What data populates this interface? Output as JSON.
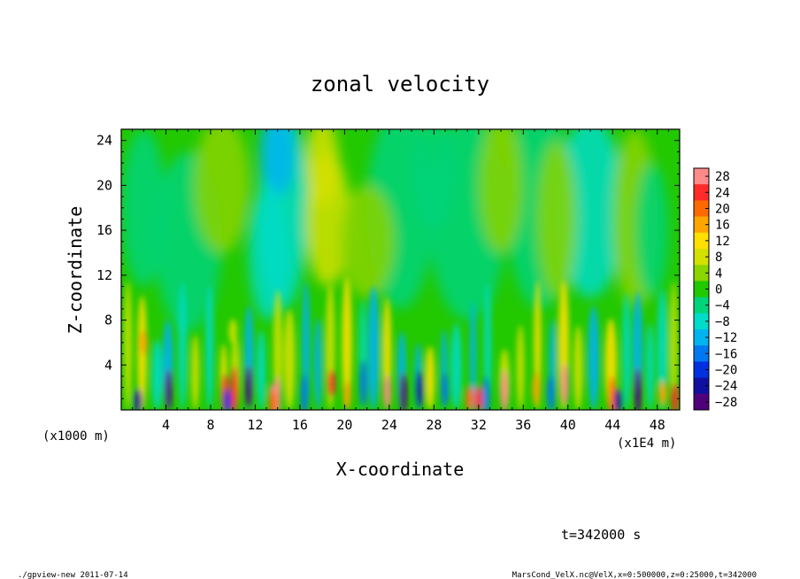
{
  "chart_data": {
    "type": "heatmap",
    "title": "zonal velocity",
    "xlabel": "X-coordinate",
    "ylabel": "Z-coordinate",
    "x_unit_label": "(x1E4 m)",
    "y_unit_label": "(x1000 m)",
    "xlim": [
      0,
      50
    ],
    "ylim": [
      0,
      25
    ],
    "x_ticks": [
      4,
      8,
      12,
      16,
      20,
      24,
      28,
      32,
      36,
      40,
      44,
      48
    ],
    "y_ticks": [
      4,
      8,
      12,
      16,
      20,
      24
    ],
    "colorbar_levels": [
      28,
      24,
      20,
      16,
      12,
      8,
      4,
      0,
      -4,
      -8,
      -12,
      -16,
      -20,
      -24,
      -28
    ],
    "colorbar_colors": [
      "#ff8a8a",
      "#ff2a2a",
      "#ff6a00",
      "#ffa500",
      "#ffe000",
      "#d4e000",
      "#8ad400",
      "#22c800",
      "#00d47a",
      "#00dcc8",
      "#00b4f0",
      "#0078f0",
      "#0030e0",
      "#1010a0",
      "#50007a"
    ],
    "field_description_values": {
      "background": 0,
      "upper_region_range": [
        -10,
        8
      ],
      "lower_region_range": [
        -28,
        28
      ]
    },
    "time_label": "t=342000 s",
    "grid": false,
    "legend_position": "right"
  },
  "footer": {
    "left": "./gpview-new  2011-07-14",
    "right": "MarsCond_VelX.nc@VelX,x=0:500000,z=0:25000,t=342000"
  }
}
